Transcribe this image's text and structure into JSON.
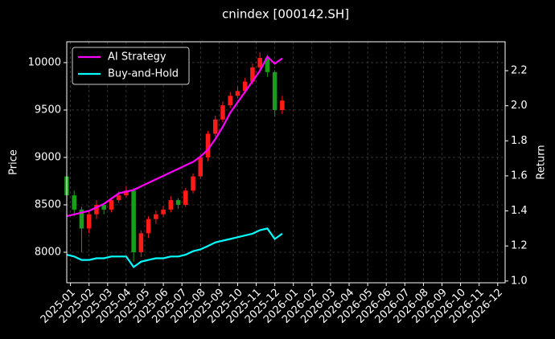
{
  "chart_data": {
    "type": "candlestick",
    "title": "cnindex [000142.SH]",
    "ylabel": "Price",
    "y2label": "Return",
    "x": [
      -0.2,
      0.2,
      0.6,
      1.0,
      1.4,
      1.8,
      2.2,
      2.6,
      3.0,
      3.4,
      3.8,
      4.2,
      4.6,
      5.0,
      5.4,
      5.8,
      6.2,
      6.6,
      7.0,
      7.4,
      7.8,
      8.2,
      8.6,
      9.0,
      9.4,
      9.8,
      10.2,
      10.6,
      11.0,
      11.4
    ],
    "open": [
      8800,
      8600,
      8450,
      8250,
      8400,
      8500,
      8450,
      8550,
      8600,
      8650,
      8000,
      8200,
      8350,
      8400,
      8450,
      8550,
      8500,
      8650,
      8800,
      9000,
      9250,
      9400,
      9550,
      9650,
      9700,
      9800,
      9950,
      10050,
      9900,
      9500
    ],
    "high": [
      8820,
      8650,
      8480,
      8430,
      8550,
      8520,
      8580,
      8640,
      8700,
      8680,
      8230,
      8380,
      8440,
      8490,
      8590,
      8570,
      8680,
      8830,
      9030,
      9280,
      9440,
      9590,
      9690,
      9750,
      9840,
      9990,
      10110,
      10080,
      9920,
      9650
    ],
    "low": [
      8520,
      8380,
      8000,
      8200,
      8350,
      8400,
      8420,
      8520,
      8580,
      7900,
      7950,
      8150,
      8300,
      8370,
      8420,
      8460,
      8480,
      8620,
      8770,
      8960,
      9220,
      9370,
      9520,
      9620,
      9670,
      9770,
      9920,
      9850,
      9430,
      9460
    ],
    "close": [
      8600,
      8450,
      8250,
      8400,
      8500,
      8450,
      8550,
      8600,
      8650,
      8000,
      8200,
      8350,
      8400,
      8450,
      8550,
      8500,
      8650,
      8800,
      9000,
      9250,
      9400,
      9550,
      9650,
      9700,
      9800,
      9950,
      10050,
      9900,
      9500,
      9600
    ],
    "up_color": "#ff1a1a",
    "down_color": "#1a9e1a",
    "series": [
      {
        "name": "AI Strategy",
        "color": "#ff00ff",
        "axis": "y2",
        "values": [
          1.37,
          1.38,
          1.39,
          1.4,
          1.42,
          1.44,
          1.47,
          1.5,
          1.51,
          1.52,
          1.54,
          1.56,
          1.58,
          1.6,
          1.62,
          1.64,
          1.66,
          1.68,
          1.71,
          1.75,
          1.81,
          1.88,
          1.96,
          2.02,
          2.08,
          2.14,
          2.2,
          2.28,
          2.24,
          2.27
        ]
      },
      {
        "name": "Buy-and-Hold",
        "color": "#00ffff",
        "axis": "y2",
        "values": [
          1.15,
          1.14,
          1.12,
          1.12,
          1.13,
          1.13,
          1.14,
          1.14,
          1.14,
          1.08,
          1.11,
          1.12,
          1.13,
          1.13,
          1.14,
          1.14,
          1.15,
          1.17,
          1.18,
          1.2,
          1.22,
          1.23,
          1.24,
          1.25,
          1.26,
          1.27,
          1.29,
          1.3,
          1.24,
          1.27
        ]
      }
    ],
    "xlim": [
      -0.2,
      23.4
    ],
    "xticks": [
      {
        "value": 0,
        "label": "2025-01"
      },
      {
        "value": 1,
        "label": "2025-02"
      },
      {
        "value": 2,
        "label": "2025-03"
      },
      {
        "value": 3,
        "label": "2025-04"
      },
      {
        "value": 4,
        "label": "2025-05"
      },
      {
        "value": 5,
        "label": "2025-06"
      },
      {
        "value": 6,
        "label": "2025-07"
      },
      {
        "value": 7,
        "label": "2025-08"
      },
      {
        "value": 8,
        "label": "2025-09"
      },
      {
        "value": 9,
        "label": "2025-10"
      },
      {
        "value": 10,
        "label": "2025-11"
      },
      {
        "value": 11,
        "label": "2025-12"
      },
      {
        "value": 12,
        "label": "2026-01"
      },
      {
        "value": 13,
        "label": "2026-02"
      },
      {
        "value": 14,
        "label": "2026-03"
      },
      {
        "value": 15,
        "label": "2026-04"
      },
      {
        "value": 16,
        "label": "2026-05"
      },
      {
        "value": 17,
        "label": "2026-06"
      },
      {
        "value": 18,
        "label": "2026-07"
      },
      {
        "value": 19,
        "label": "2026-08"
      },
      {
        "value": 20,
        "label": "2026-09"
      },
      {
        "value": 21,
        "label": "2026-10"
      },
      {
        "value": 22,
        "label": "2026-11"
      },
      {
        "value": 23,
        "label": "2026-12"
      }
    ],
    "ylim": [
      7678,
      10220
    ],
    "yticks": [
      8000,
      8500,
      9000,
      9500,
      10000
    ],
    "y2lim": [
      0.99,
      2.365
    ],
    "y2ticks": [
      {
        "value": 1,
        "label": "1.0"
      },
      1.2,
      1.4,
      1.6,
      1.8,
      {
        "value": 2,
        "label": "2.0"
      },
      2.2
    ],
    "grid": true,
    "legend": "upper left"
  }
}
